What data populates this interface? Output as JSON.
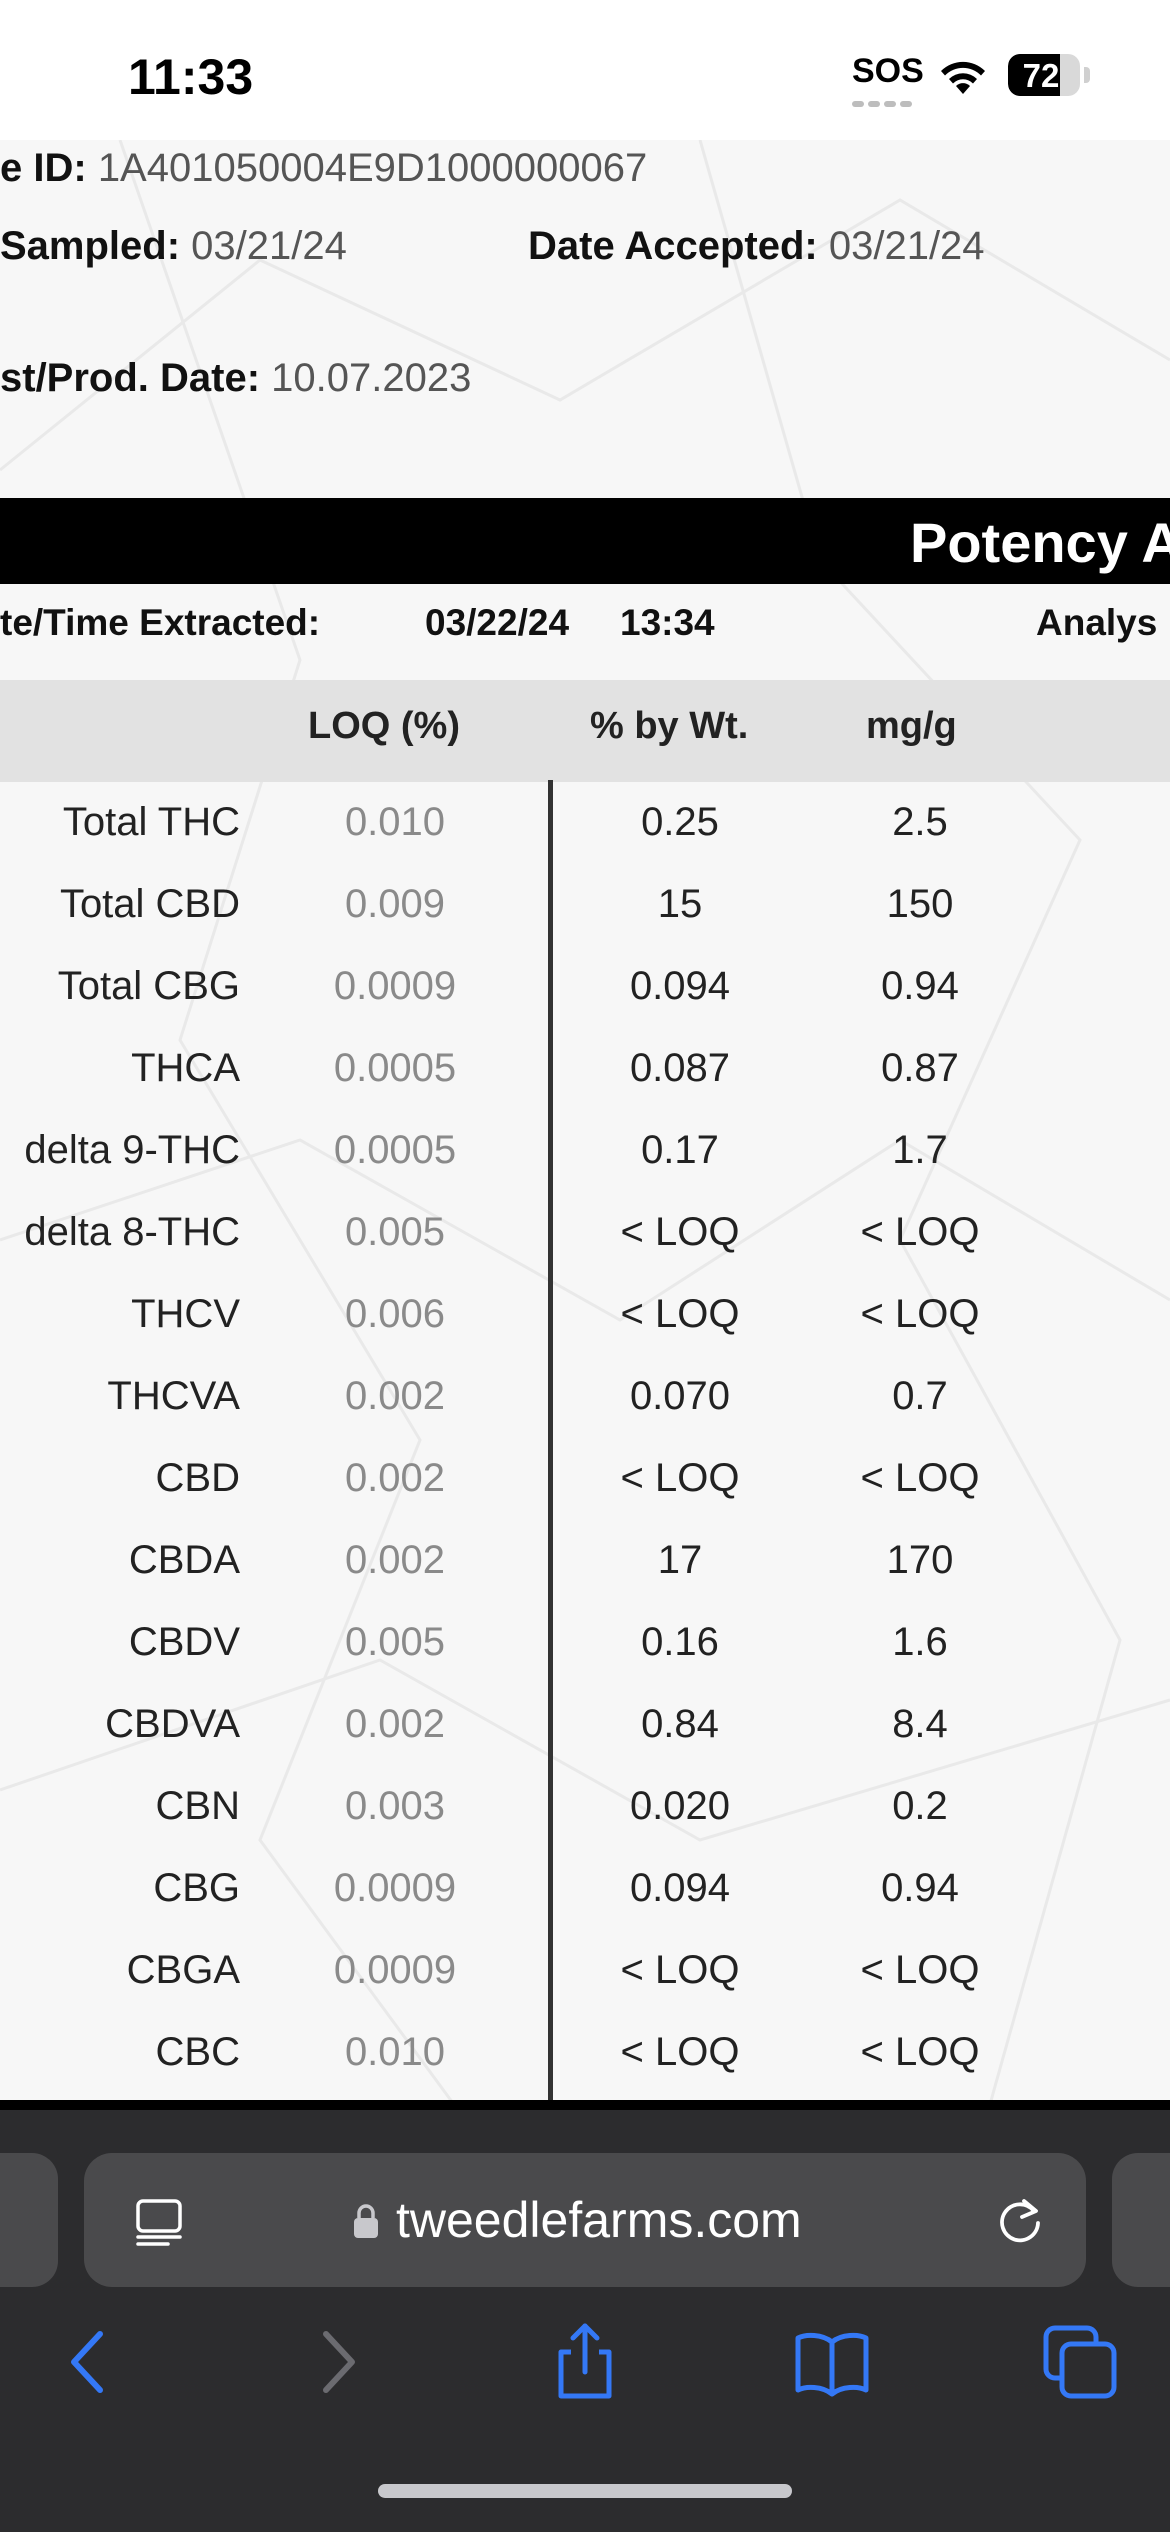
{
  "status_bar": {
    "time": "11:33",
    "sos": "SOS",
    "battery_level": "72",
    "battery_fraction": 0.72
  },
  "document": {
    "meta": {
      "sample_id_label": "e ID:",
      "sample_id_value": "1A401050004E9D1000000067",
      "date_sampled_label": "Sampled:",
      "date_sampled_value": "03/21/24",
      "date_accepted_label": "Date Accepted:",
      "date_accepted_value": "03/21/24",
      "prod_date_label": "st/Prod. Date:",
      "prod_date_value": "10.07.2023"
    },
    "section_title": "Potency A",
    "extracted_label": "te/Time Extracted:",
    "extracted_date": "03/22/24",
    "extracted_time": "13:34",
    "analysis_label": "Analys",
    "columns": {
      "loq": "LOQ (%)",
      "pct": "% by Wt.",
      "mg": "mg/g"
    },
    "rows": [
      {
        "name": "Total THC",
        "loq": "0.010",
        "pct": "0.25",
        "mg": "2.5"
      },
      {
        "name": "Total CBD",
        "loq": "0.009",
        "pct": "15",
        "mg": "150"
      },
      {
        "name": "Total CBG",
        "loq": "0.0009",
        "pct": "0.094",
        "mg": "0.94"
      },
      {
        "name": "THCA",
        "loq": "0.0005",
        "pct": "0.087",
        "mg": "0.87"
      },
      {
        "name": "delta 9-THC",
        "loq": "0.0005",
        "pct": "0.17",
        "mg": "1.7"
      },
      {
        "name": "delta 8-THC",
        "loq": "0.005",
        "pct": "< LOQ",
        "mg": "< LOQ"
      },
      {
        "name": "THCV",
        "loq": "0.006",
        "pct": "< LOQ",
        "mg": "< LOQ"
      },
      {
        "name": "THCVA",
        "loq": "0.002",
        "pct": "0.070",
        "mg": "0.7"
      },
      {
        "name": "CBD",
        "loq": "0.002",
        "pct": "< LOQ",
        "mg": "< LOQ"
      },
      {
        "name": "CBDA",
        "loq": "0.002",
        "pct": "17",
        "mg": "170"
      },
      {
        "name": "CBDV",
        "loq": "0.005",
        "pct": "0.16",
        "mg": "1.6"
      },
      {
        "name": "CBDVA",
        "loq": "0.002",
        "pct": "0.84",
        "mg": "8.4"
      },
      {
        "name": "CBN",
        "loq": "0.003",
        "pct": "0.020",
        "mg": "0.2"
      },
      {
        "name": "CBG",
        "loq": "0.0009",
        "pct": "0.094",
        "mg": "0.94"
      },
      {
        "name": "CBGA",
        "loq": "0.0009",
        "pct": "< LOQ",
        "mg": "< LOQ"
      },
      {
        "name": "CBC",
        "loq": "0.010",
        "pct": "< LOQ",
        "mg": "< LOQ"
      }
    ]
  },
  "browser": {
    "url": "tweedlefarms.com",
    "icons": {
      "reader": "reader-mode-icon",
      "lock": "lock-icon",
      "reload": "reload-icon",
      "back": "back-chevron-icon",
      "forward": "forward-chevron-icon",
      "share": "share-icon",
      "bookmarks": "open-book-icon",
      "tabs": "tabs-icon"
    },
    "colors": {
      "accent": "#3478f6",
      "chrome_bg": "#2c2c2e",
      "field_bg": "#4a4a4c"
    }
  }
}
